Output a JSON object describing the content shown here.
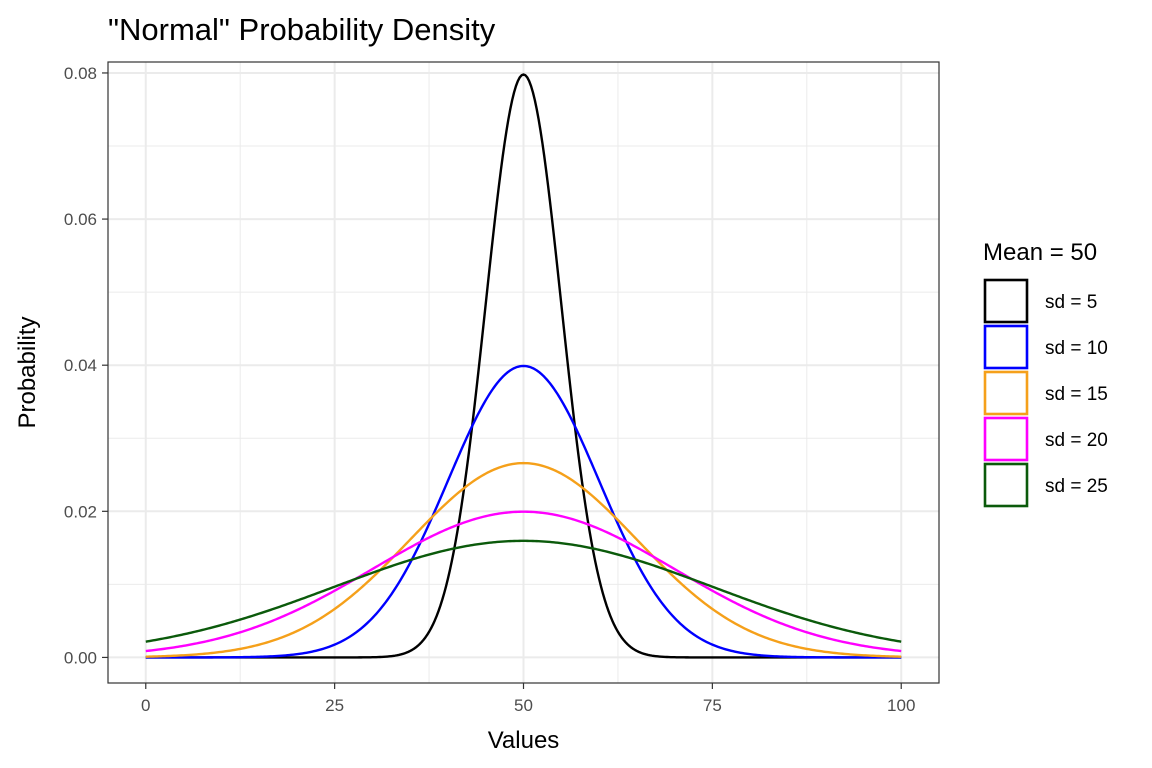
{
  "chart_data": {
    "type": "line",
    "title": "\"Normal\" Probability Density",
    "xlabel": "Values",
    "ylabel": "Probability",
    "xlim": [
      -5,
      105
    ],
    "ylim": [
      -0.0035,
      0.0815
    ],
    "x_ticks": [
      0,
      25,
      50,
      75,
      100
    ],
    "x_tick_labels": [
      "0",
      "25",
      "50",
      "75",
      "100"
    ],
    "y_ticks": [
      0,
      0.02,
      0.04,
      0.06,
      0.08
    ],
    "y_tick_labels": [
      "0.00",
      "0.02",
      "0.04",
      "0.06",
      "0.08"
    ],
    "grid": true,
    "legend": {
      "title": "Mean = 50",
      "position": "right"
    },
    "mean": 50,
    "x_range": [
      0,
      100
    ],
    "series": [
      {
        "name": "sd = 5",
        "sd": 5,
        "color": "#000000"
      },
      {
        "name": "sd = 10",
        "sd": 10,
        "color": "#0000ff"
      },
      {
        "name": "sd = 15",
        "sd": 15,
        "color": "#f5a01a"
      },
      {
        "name": "sd = 20",
        "sd": 20,
        "color": "#ff00ff"
      },
      {
        "name": "sd = 25",
        "sd": 25,
        "color": "#0b5a0b"
      }
    ]
  }
}
